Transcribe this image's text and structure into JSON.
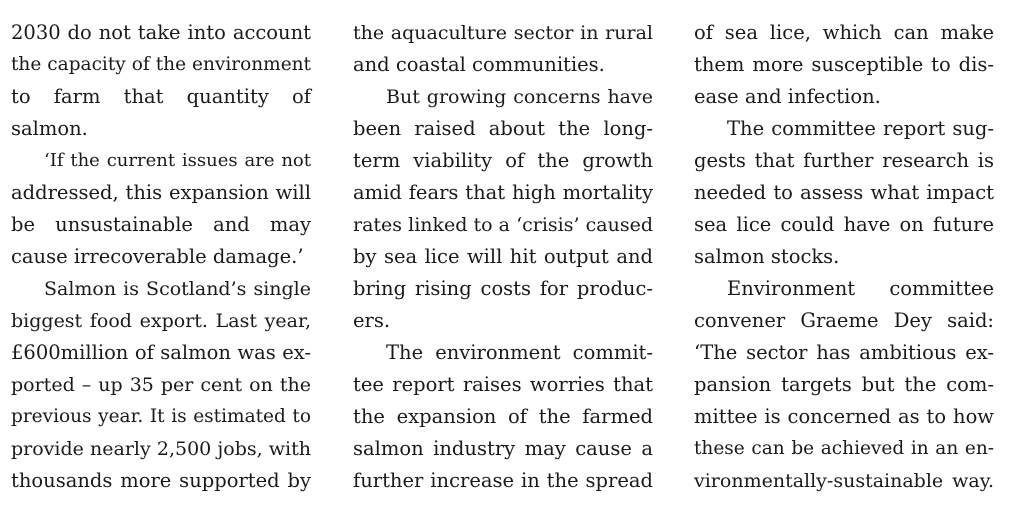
{
  "columns": [
    {
      "lines": [
        "2030 do not take into account",
        "the capacity of the environment",
        "to farm that quantity of",
        "salmon.",
        "‘If the current issues are not",
        "addressed, this expansion will",
        "be unsustainable and may",
        "cause irrecoverable damage.’",
        "Salmon is Scotland’s single",
        "biggest food export. Last year,",
        "£600million of salmon was ex-",
        "ported – up 35 per cent on the",
        "previous year. It is estimated to",
        "provide nearly 2,500 jobs, with",
        "thousands more supported by"
      ]
    },
    {
      "lines": [
        "the aquaculture sector in rural",
        "and coastal communities.",
        "But growing concerns have",
        "been raised about the long-",
        "term viability of the growth",
        "amid fears that high mortality",
        "rates linked to a ‘crisis’ caused",
        "by sea lice will hit output and",
        "bring rising costs for produc-",
        "ers.",
        "The environment commit-",
        "tee report raises worries that",
        "the expansion of the farmed",
        "salmon industry may cause a",
        "further increase in the spread"
      ]
    },
    {
      "lines": [
        "of sea lice, which can make",
        "them more susceptible to dis-",
        "ease and infection.",
        "The committee report sug-",
        "gests that further research is",
        "needed to assess what impact",
        "sea lice could have on future",
        "salmon stocks.",
        "Environment committee",
        "convener Graeme Dey said:",
        "‘The sector has ambitious ex-",
        "pansion targets but the com-",
        "mittee is concerned as to how",
        "these can be achieved in an en-",
        "vironmentally-sustainable way."
      ]
    }
  ]
}
